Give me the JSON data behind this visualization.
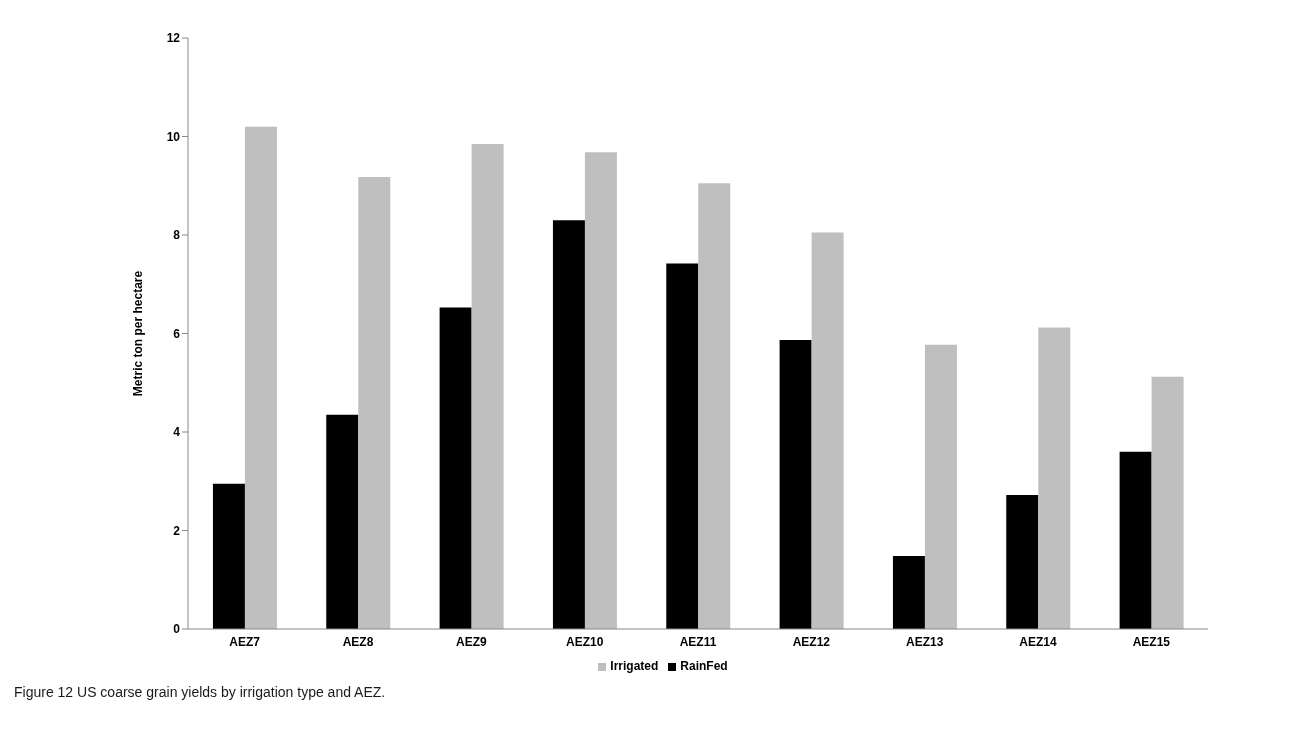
{
  "chart_data": {
    "type": "bar",
    "ylabel": "Metric ton per hectare",
    "categories": [
      "AEZ7",
      "AEZ8",
      "AEZ9",
      "AEZ10",
      "AEZ11",
      "AEZ12",
      "AEZ13",
      "AEZ14",
      "AEZ15"
    ],
    "series": [
      {
        "name": "RainFed",
        "color": "#000000",
        "values": [
          2.95,
          4.35,
          6.53,
          8.3,
          7.42,
          5.87,
          1.48,
          2.72,
          3.6
        ]
      },
      {
        "name": "Irrigated",
        "color": "#bfbfbf",
        "values": [
          10.2,
          9.18,
          9.85,
          9.68,
          9.05,
          8.05,
          5.77,
          6.12,
          5.12
        ]
      }
    ],
    "ylim": [
      0,
      12
    ],
    "yticks": [
      0,
      2,
      4,
      6,
      8,
      10,
      12
    ],
    "grid": false,
    "legend": "bottom",
    "annotations": [
      "Figure 12 US coarse grain yields by irrigation type and AEZ."
    ]
  }
}
